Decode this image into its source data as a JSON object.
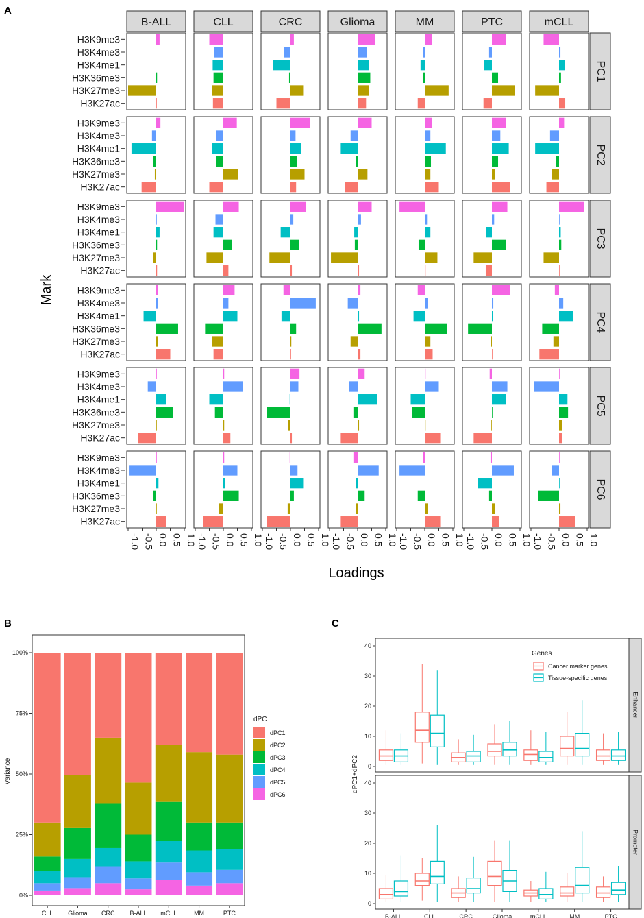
{
  "figure_labels": {
    "a": "A",
    "b": "B",
    "c": "C"
  },
  "colors": {
    "H3K27ac": "#F8766D",
    "H3K27me3": "#B79F00",
    "H3K36me3": "#00BA38",
    "H3K4me1": "#00BFC4",
    "H3K4me3": "#619CFF",
    "H3K9me3": "#F564E3",
    "dPC1": "#F8766D",
    "dPC2": "#B79F00",
    "dPC3": "#00BA38",
    "dPC4": "#00BFC4",
    "dPC5": "#619CFF",
    "dPC6": "#F564E3",
    "cancer": "#F8766D",
    "tissue": "#00BFC4",
    "strip": "#d9d9d9"
  },
  "chart_data": [
    {
      "id": "A",
      "type": "bar",
      "orientation": "horizontal",
      "xlabel": "Loadings",
      "ylabel": "Mark",
      "xlim": [
        -1.0,
        1.0
      ],
      "x_ticks": [
        "-1.0",
        "-0.5",
        "0.0",
        "0.5",
        "1.0"
      ],
      "x_tick_values": [
        -1.0,
        -0.5,
        0.0,
        0.5,
        1.0
      ],
      "columns": [
        "B-ALL",
        "CLL",
        "CRC",
        "Glioma",
        "MM",
        "PTC",
        "mCLL"
      ],
      "rows": [
        "PC1",
        "PC2",
        "PC3",
        "PC4",
        "PC5",
        "PC6"
      ],
      "marks": [
        "H3K9me3",
        "H3K4me3",
        "H3K4me1",
        "H3K36me3",
        "H3K27me3",
        "H3K27ac"
      ],
      "values": {
        "PC1": {
          "B-ALL": [
            0.12,
            -0.02,
            -0.02,
            0.03,
            -1.0,
            0.02
          ],
          "CLL": [
            -0.5,
            -0.32,
            -0.38,
            -0.35,
            -0.4,
            -0.37
          ],
          "CRC": [
            0.12,
            -0.22,
            -0.62,
            -0.05,
            0.45,
            -0.5
          ],
          "Glioma": [
            0.62,
            0.33,
            0.4,
            0.45,
            0.4,
            0.3
          ],
          "MM": [
            0.25,
            -0.05,
            -0.15,
            -0.05,
            0.85,
            -0.25
          ],
          "PTC": [
            0.5,
            -0.1,
            -0.28,
            0.22,
            0.82,
            -0.3
          ],
          "mCLL": [
            -0.55,
            0.05,
            0.2,
            0.07,
            -0.85,
            0.22
          ]
        },
        "PC2": {
          "B-ALL": [
            0.15,
            -0.15,
            -0.88,
            -0.12,
            -0.05,
            -0.52
          ],
          "CLL": [
            0.48,
            -0.25,
            -0.4,
            -0.25,
            0.52,
            -0.5
          ],
          "CRC": [
            0.7,
            0.18,
            0.38,
            0.22,
            0.5,
            0.2
          ],
          "Glioma": [
            0.5,
            -0.25,
            -0.6,
            -0.05,
            0.35,
            -0.45
          ],
          "MM": [
            0.25,
            0.2,
            0.75,
            0.22,
            0.2,
            0.5
          ],
          "PTC": [
            0.5,
            0.3,
            0.6,
            0.22,
            0.1,
            0.65
          ],
          "mCLL": [
            0.18,
            -0.32,
            -0.85,
            -0.12,
            -0.25,
            -0.45
          ]
        },
        "PC3": {
          "B-ALL": [
            1.0,
            0.02,
            0.12,
            0.03,
            -0.1,
            0.03
          ],
          "CLL": [
            0.55,
            -0.28,
            -0.35,
            0.3,
            -0.6,
            0.18
          ],
          "CRC": [
            0.55,
            0.1,
            -0.35,
            0.3,
            -0.75,
            0.05
          ],
          "Glioma": [
            0.5,
            0.12,
            -0.12,
            -0.1,
            -0.95,
            0.05
          ],
          "MM": [
            -0.9,
            0.08,
            0.2,
            -0.22,
            0.45,
            0.03
          ],
          "PTC": [
            0.55,
            0.08,
            -0.2,
            0.5,
            -0.65,
            -0.22
          ],
          "mCLL": [
            0.88,
            0.02,
            0.06,
            0.08,
            -0.55,
            0.02
          ]
        },
        "PC4": {
          "B-ALL": [
            0.05,
            0.05,
            -0.45,
            0.78,
            0.05,
            0.5
          ],
          "CLL": [
            0.4,
            0.18,
            0.5,
            -0.65,
            -0.4,
            -0.35
          ],
          "CRC": [
            -0.25,
            0.9,
            -0.32,
            0.2,
            0.03,
            0.02
          ],
          "Glioma": [
            0.1,
            -0.35,
            0.05,
            0.85,
            -0.25,
            0.1
          ],
          "MM": [
            -0.25,
            0.1,
            -0.4,
            0.8,
            0.2,
            0.28
          ],
          "PTC": [
            0.65,
            0.05,
            0.03,
            -0.85,
            -0.03,
            0.02
          ],
          "mCLL": [
            -0.15,
            0.15,
            0.5,
            -0.6,
            -0.2,
            -0.7
          ]
        },
        "PC5": {
          "B-ALL": [
            0.02,
            -0.3,
            0.35,
            0.6,
            0.02,
            -0.65
          ],
          "CLL": [
            0.03,
            0.7,
            -0.5,
            -0.3,
            0.03,
            0.25
          ],
          "CRC": [
            0.32,
            0.28,
            -0.03,
            -0.85,
            -0.08,
            0.05
          ],
          "Glioma": [
            0.25,
            -0.3,
            0.7,
            -0.15,
            0.05,
            -0.6
          ],
          "MM": [
            0.03,
            0.5,
            -0.5,
            -0.45,
            0.03,
            0.55
          ],
          "PTC": [
            -0.08,
            0.55,
            0.5,
            0.02,
            -0.02,
            -0.65
          ],
          "mCLL": [
            0.02,
            -0.88,
            0.3,
            0.32,
            0.1,
            0.1
          ]
        },
        "PC6": {
          "B-ALL": [
            0.02,
            -0.95,
            0.08,
            -0.12,
            0.02,
            0.35
          ],
          "CLL": [
            0.03,
            0.5,
            0.05,
            0.55,
            -0.15,
            -0.72
          ],
          "CRC": [
            -0.03,
            0.25,
            0.45,
            0.12,
            -0.1,
            -0.85
          ],
          "Glioma": [
            -0.15,
            0.75,
            -0.05,
            0.25,
            -0.05,
            -0.6
          ],
          "MM": [
            -0.05,
            -0.9,
            0.02,
            -0.25,
            0.1,
            0.55
          ],
          "PTC": [
            -0.05,
            0.78,
            -0.5,
            -0.1,
            0.1,
            0.25
          ],
          "mCLL": [
            0.02,
            -0.25,
            0.02,
            -0.75,
            0.05,
            0.58
          ]
        }
      }
    },
    {
      "id": "B",
      "type": "bar",
      "stacked": true,
      "ylabel": "Variance",
      "xlabel": "",
      "ylim": [
        0,
        100
      ],
      "y_ticks": [
        "0%",
        "25%",
        "50%",
        "75%",
        "100%"
      ],
      "y_tick_values": [
        0,
        25,
        50,
        75,
        100
      ],
      "legend_title": "dPC",
      "categories": [
        "CLL",
        "Glioma",
        "CRC",
        "B-ALL",
        "mCLL",
        "MM",
        "PTC"
      ],
      "series": [
        {
          "name": "dPC6",
          "values": [
            2,
            3,
            5,
            2.5,
            6.5,
            4,
            5
          ]
        },
        {
          "name": "dPC5",
          "values": [
            3,
            4.5,
            7,
            4.5,
            7,
            5.5,
            5.5
          ]
        },
        {
          "name": "dPC4",
          "values": [
            5,
            7.5,
            7.5,
            7,
            9,
            9,
            8.5
          ]
        },
        {
          "name": "dPC3",
          "values": [
            6,
            13,
            18.5,
            11,
            16,
            11.5,
            11
          ]
        },
        {
          "name": "dPC2",
          "values": [
            14,
            21.5,
            27,
            21.5,
            23.5,
            29,
            28
          ]
        },
        {
          "name": "dPC1",
          "values": [
            70,
            50.5,
            35,
            53.5,
            38,
            41,
            42
          ]
        }
      ]
    },
    {
      "id": "C",
      "type": "boxplot",
      "ylabel": "dPC1+dPC2",
      "xlabel": "",
      "ylim": [
        0,
        40
      ],
      "y_ticks": [
        "0",
        "10",
        "20",
        "30",
        "40"
      ],
      "y_tick_values": [
        0,
        10,
        20,
        30,
        40
      ],
      "categories": [
        "B-ALL",
        "CLL",
        "CRC",
        "Glioma",
        "mCLL",
        "MM",
        "PTC"
      ],
      "legend_title": "Genes",
      "legend": [
        "Cancer marker genes",
        "Tissue-specific genes"
      ],
      "facets": [
        {
          "name": "Enhancer",
          "series": [
            {
              "name": "Cancer marker genes",
              "stats": [
                [
                  0.5,
                  2,
                  3.5,
                  5.5,
                  12
                ],
                [
                  1,
                  8,
                  12,
                  18,
                  34
                ],
                [
                  0.5,
                  1.5,
                  3,
                  4.5,
                  9
                ],
                [
                  0.5,
                  3.5,
                  5,
                  7.5,
                  14
                ],
                [
                  0.5,
                  2,
                  4,
                  5.5,
                  12
                ],
                [
                  0.5,
                  3.5,
                  6,
                  10,
                  18
                ],
                [
                  0.5,
                  2,
                  3.5,
                  5.5,
                  11
                ]
              ]
            },
            {
              "name": "Tissue-specific genes",
              "stats": [
                [
                  0.5,
                  1.5,
                  3.5,
                  5.5,
                  11
                ],
                [
                  0.5,
                  6.5,
                  11,
                  17,
                  32
                ],
                [
                  0.5,
                  1.5,
                  3.5,
                  5,
                  10.5
                ],
                [
                  0.5,
                  3.5,
                  5.5,
                  8,
                  15
                ],
                [
                  0.5,
                  1.5,
                  3,
                  5,
                  11.5
                ],
                [
                  0.5,
                  3.5,
                  6,
                  11,
                  22
                ],
                [
                  0.5,
                  2,
                  3.5,
                  5.5,
                  11.5
                ]
              ]
            }
          ]
        },
        {
          "name": "Promoter",
          "series": [
            {
              "name": "Cancer marker genes",
              "stats": [
                [
                  0.5,
                  1.5,
                  3,
                  5,
                  9.5
                ],
                [
                  1,
                  6,
                  7.5,
                  10,
                  15
                ],
                [
                  0.5,
                  2,
                  3.5,
                  5,
                  9
                ],
                [
                  0.5,
                  6,
                  9,
                  14,
                  21
                ],
                [
                  0.5,
                  2.5,
                  3.5,
                  4.5,
                  7.5
                ],
                [
                  0.5,
                  2.5,
                  3.5,
                  5.5,
                  10
                ],
                [
                  0.5,
                  2,
                  3.5,
                  5.5,
                  9
                ]
              ]
            },
            {
              "name": "Tissue-specific genes",
              "stats": [
                [
                  0.5,
                  2.5,
                  4,
                  7.5,
                  16
                ],
                [
                  0.5,
                  6.5,
                  9,
                  14,
                  26
                ],
                [
                  0.5,
                  3.5,
                  5,
                  8.5,
                  15.5
                ],
                [
                  0.5,
                  4,
                  7.5,
                  11,
                  21
                ],
                [
                  0.5,
                  1.5,
                  3,
                  5,
                  10.5
                ],
                [
                  0.5,
                  3.5,
                  6,
                  12,
                  24
                ],
                [
                  0.5,
                  3,
                  4.5,
                  7,
                  12.5
                ]
              ]
            }
          ]
        }
      ]
    }
  ]
}
